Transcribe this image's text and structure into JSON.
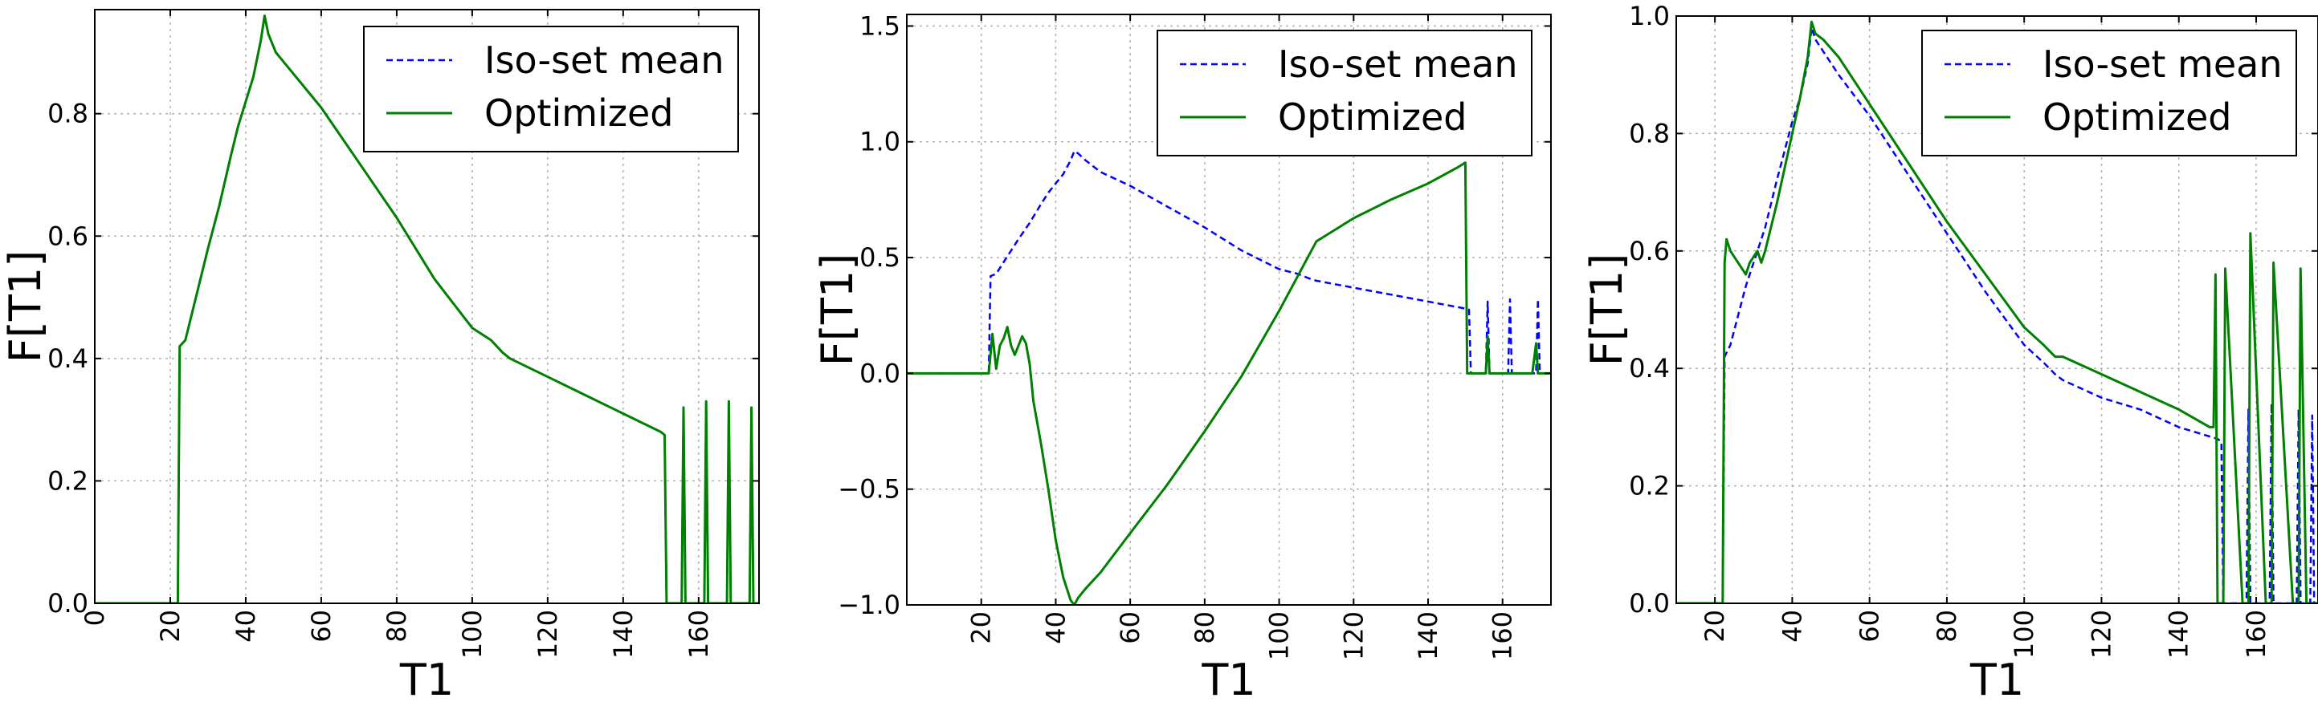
{
  "chart_data": [
    {
      "type": "line",
      "xlabel": "T1",
      "ylabel": "F[T1]",
      "xlim": [
        0,
        176
      ],
      "ylim": [
        0.0,
        0.97
      ],
      "xticks": [
        0,
        20,
        40,
        60,
        80,
        100,
        120,
        140,
        160
      ],
      "yticks": [
        0.0,
        0.2,
        0.4,
        0.6,
        0.8
      ],
      "ytick_labels": [
        "0.0",
        "0.2",
        "0.4",
        "0.6",
        "0.8"
      ],
      "grid": true,
      "legend": "top-right",
      "series": [
        {
          "name": "Iso-set mean",
          "color": "#0000ff",
          "style": "dashed",
          "x": [
            0,
            22,
            22.5,
            24,
            26,
            28,
            30,
            33,
            36,
            38,
            40,
            42,
            44,
            45,
            46,
            48,
            52,
            60,
            70,
            80,
            90,
            100,
            105,
            108,
            110,
            120,
            130,
            140,
            150,
            151,
            151.5,
            155.5,
            156,
            156.5,
            157,
            157.5,
            161.5,
            162,
            162.5,
            163,
            163.5,
            167.5,
            168,
            168.5,
            169,
            169.5,
            173.5,
            174,
            174.5,
            175,
            175.5,
            176
          ],
          "y": [
            0,
            0,
            0.42,
            0.43,
            0.48,
            0.53,
            0.58,
            0.65,
            0.73,
            0.78,
            0.82,
            0.86,
            0.92,
            0.96,
            0.93,
            0.9,
            0.87,
            0.81,
            0.72,
            0.63,
            0.53,
            0.45,
            0.43,
            0.41,
            0.4,
            0.37,
            0.34,
            0.31,
            0.28,
            0.275,
            0,
            0,
            0.32,
            0,
            0,
            0,
            0,
            0.33,
            0,
            0,
            0,
            0,
            0.33,
            0,
            0,
            0,
            0,
            0.32,
            0,
            0,
            0,
            0
          ]
        },
        {
          "name": "Optimized",
          "color": "#008000",
          "style": "solid",
          "x": [
            0,
            22,
            22.5,
            24,
            26,
            28,
            30,
            33,
            36,
            38,
            40,
            42,
            44,
            45,
            46,
            48,
            52,
            60,
            70,
            80,
            90,
            100,
            105,
            108,
            110,
            120,
            130,
            140,
            150,
            151,
            151.5,
            155.5,
            156,
            156.5,
            157,
            157.5,
            161.5,
            162,
            162.5,
            163,
            163.5,
            167.5,
            168,
            168.5,
            169,
            169.5,
            173.5,
            174,
            174.5,
            175,
            175.5,
            176
          ],
          "y": [
            0,
            0,
            0.42,
            0.43,
            0.48,
            0.53,
            0.58,
            0.65,
            0.73,
            0.78,
            0.82,
            0.86,
            0.92,
            0.96,
            0.93,
            0.9,
            0.87,
            0.81,
            0.72,
            0.63,
            0.53,
            0.45,
            0.43,
            0.41,
            0.4,
            0.37,
            0.34,
            0.31,
            0.28,
            0.275,
            0,
            0,
            0.32,
            0,
            0,
            0,
            0,
            0.33,
            0,
            0,
            0,
            0,
            0.33,
            0,
            0,
            0,
            0,
            0.32,
            0,
            0,
            0,
            0
          ]
        }
      ]
    },
    {
      "type": "line",
      "xlabel": "T1",
      "ylabel": "F[T1]",
      "xlim": [
        0,
        173
      ],
      "ylim": [
        -1.0,
        1.55
      ],
      "xticks": [
        20,
        40,
        60,
        80,
        100,
        120,
        140,
        160
      ],
      "yticks": [
        -1.0,
        -0.5,
        0.0,
        0.5,
        1.0,
        1.5
      ],
      "ytick_labels": [
        "−1.0",
        "−0.5",
        "0.0",
        "0.5",
        "1.0",
        "1.5"
      ],
      "grid": true,
      "legend": "top-right",
      "series": [
        {
          "name": "Iso-set mean",
          "color": "#0000ff",
          "style": "dashed",
          "x": [
            0,
            22,
            22.5,
            24,
            26,
            28,
            30,
            33,
            36,
            38,
            40,
            42,
            44,
            45,
            46,
            48,
            52,
            60,
            70,
            80,
            90,
            100,
            105,
            108,
            110,
            120,
            130,
            140,
            150,
            151,
            151.5,
            155.5,
            156,
            156.5,
            157,
            157.5,
            161.5,
            162,
            162.5,
            163,
            163.5,
            169,
            169.5,
            170,
            170.5,
            171,
            173
          ],
          "y": [
            0,
            0,
            0.42,
            0.43,
            0.48,
            0.53,
            0.58,
            0.65,
            0.73,
            0.78,
            0.82,
            0.86,
            0.92,
            0.96,
            0.95,
            0.92,
            0.87,
            0.81,
            0.72,
            0.63,
            0.53,
            0.45,
            0.43,
            0.41,
            0.4,
            0.37,
            0.34,
            0.31,
            0.28,
            0.275,
            0,
            0,
            0.31,
            0,
            0,
            0,
            0,
            0.32,
            0,
            0,
            0,
            0,
            0.32,
            0,
            0,
            0,
            0
          ]
        },
        {
          "name": "Optimized",
          "color": "#008000",
          "style": "solid",
          "x": [
            0,
            22,
            23,
            24,
            25,
            26,
            27,
            28,
            29,
            30,
            31,
            32,
            33,
            34,
            36,
            38,
            40,
            42,
            44,
            45,
            46,
            48,
            52,
            60,
            70,
            80,
            90,
            100,
            105,
            110,
            120,
            130,
            140,
            148,
            149,
            150,
            150.5,
            155.5,
            156,
            156.5,
            157,
            168,
            169,
            169.5,
            170,
            170.5,
            173
          ],
          "y": [
            0,
            0,
            0.17,
            0.02,
            0.12,
            0.15,
            0.2,
            0.12,
            0.08,
            0.12,
            0.16,
            0.13,
            0.04,
            -0.12,
            -0.3,
            -0.5,
            -0.72,
            -0.88,
            -0.98,
            -1.0,
            -0.97,
            -0.93,
            -0.86,
            -0.69,
            -0.48,
            -0.25,
            -0.01,
            0.27,
            0.42,
            0.57,
            0.67,
            0.75,
            0.82,
            0.89,
            0.9,
            0.91,
            0,
            0,
            0.16,
            0,
            0,
            0,
            0.13,
            0,
            0,
            0,
            0
          ]
        }
      ]
    },
    {
      "type": "line",
      "xlabel": "T1",
      "ylabel": "F[T1]",
      "xlim": [
        10,
        176
      ],
      "ylim": [
        0.0,
        1.0
      ],
      "xticks": [
        20,
        40,
        60,
        80,
        100,
        120,
        140,
        160
      ],
      "yticks": [
        0.0,
        0.2,
        0.4,
        0.6,
        0.8,
        1.0
      ],
      "ytick_labels": [
        "0.0",
        "0.2",
        "0.4",
        "0.6",
        "0.8",
        "1.0"
      ],
      "grid": true,
      "legend": "top-right",
      "series": [
        {
          "name": "Iso-set mean",
          "color": "#0000ff",
          "style": "dashed",
          "x": [
            10,
            22,
            22.5,
            24,
            26,
            28,
            30,
            33,
            36,
            38,
            40,
            42,
            44,
            45,
            46,
            48,
            52,
            60,
            70,
            80,
            90,
            100,
            105,
            108,
            110,
            120,
            130,
            140,
            150,
            151,
            151.5,
            157.5,
            158,
            158.5,
            159,
            159.5,
            163.5,
            164,
            164.5,
            165,
            165.5,
            170.5,
            171,
            171.5,
            172,
            172.5,
            174,
            174.5,
            175,
            175.5,
            176
          ],
          "y": [
            0,
            0,
            0.42,
            0.44,
            0.49,
            0.54,
            0.58,
            0.64,
            0.72,
            0.77,
            0.82,
            0.86,
            0.92,
            0.98,
            0.96,
            0.94,
            0.9,
            0.83,
            0.73,
            0.63,
            0.53,
            0.44,
            0.41,
            0.39,
            0.38,
            0.35,
            0.33,
            0.3,
            0.28,
            0.275,
            0,
            0,
            0.33,
            0,
            0,
            0,
            0,
            0.34,
            0,
            0,
            0,
            0,
            0.33,
            0,
            0,
            0,
            0,
            0.32,
            0,
            0,
            0
          ]
        },
        {
          "name": "Optimized",
          "color": "#008000",
          "style": "solid",
          "x": [
            10,
            22,
            22.5,
            23,
            24,
            26,
            28,
            29,
            30,
            31,
            32,
            33,
            36,
            38,
            40,
            42,
            44,
            45,
            46,
            48,
            52,
            60,
            70,
            80,
            90,
            100,
            105,
            108,
            110,
            120,
            130,
            140,
            148,
            149,
            149.5,
            150,
            151,
            151.5,
            152,
            156.5,
            157,
            157.5,
            158,
            158.5,
            162.5,
            163,
            163.5,
            164,
            164.5,
            169.5,
            170,
            170.5,
            171,
            171.5,
            173,
            173.5,
            174,
            174.5,
            176
          ],
          "y": [
            0,
            0,
            0.58,
            0.62,
            0.6,
            0.58,
            0.56,
            0.58,
            0.59,
            0.6,
            0.58,
            0.6,
            0.68,
            0.74,
            0.8,
            0.86,
            0.93,
            0.99,
            0.97,
            0.96,
            0.93,
            0.85,
            0.75,
            0.65,
            0.56,
            0.47,
            0.44,
            0.42,
            0.42,
            0.39,
            0.36,
            0.33,
            0.3,
            0.3,
            0.56,
            0,
            0,
            0,
            0.57,
            0,
            0,
            0,
            0,
            0.63,
            0,
            0,
            0,
            0,
            0.58,
            0,
            0,
            0,
            0,
            0.57,
            0,
            0,
            0,
            0,
            0
          ]
        }
      ]
    }
  ]
}
